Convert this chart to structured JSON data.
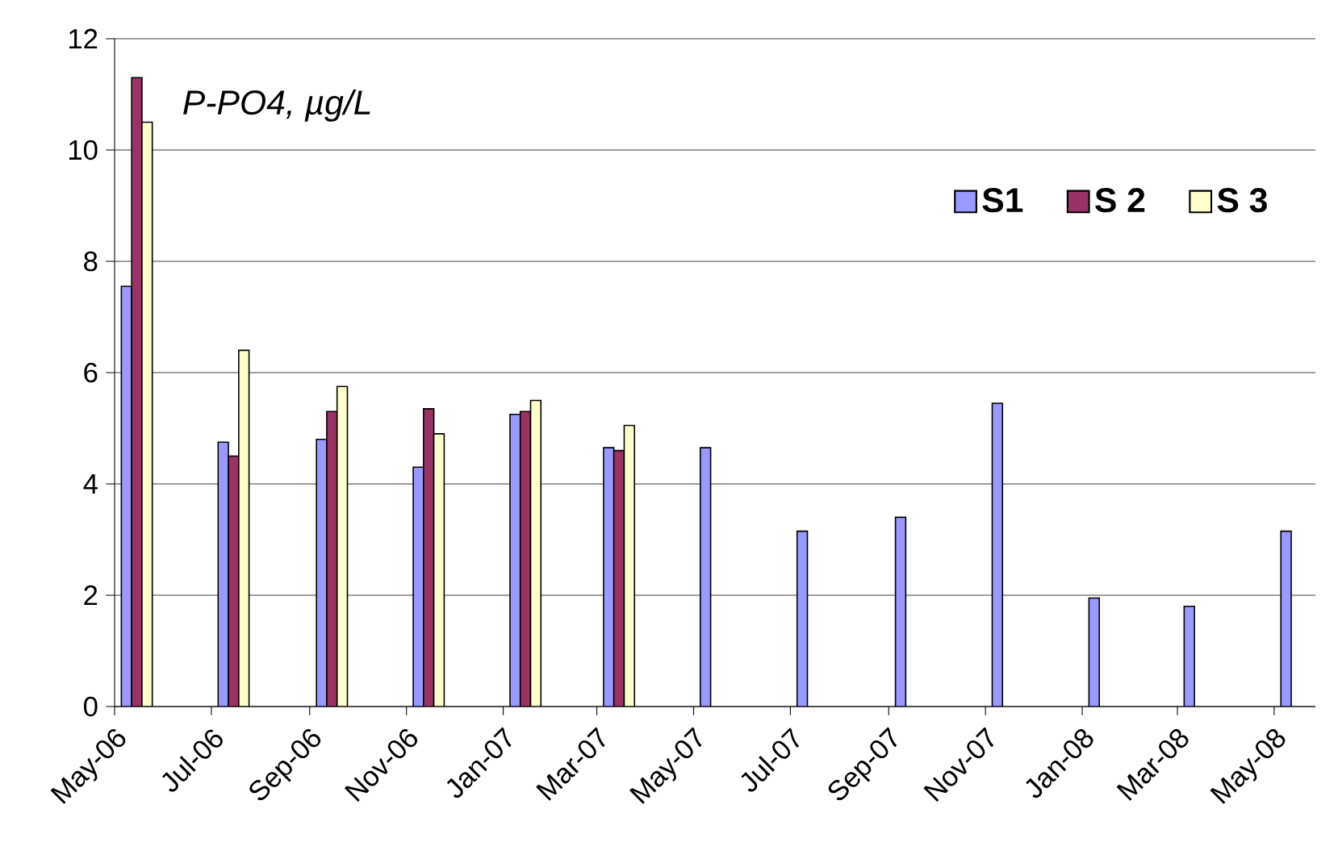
{
  "chart_data": {
    "type": "bar",
    "annotations": [
      "P-PO4, µg/L"
    ],
    "x": [
      "2006-05-15",
      "2006-07-15",
      "2006-09-15",
      "2006-11-15",
      "2007-01-15",
      "2007-03-15",
      "2007-05-15",
      "2007-07-15",
      "2007-09-15",
      "2007-11-15",
      "2008-01-15",
      "2008-03-15",
      "2008-05-15"
    ],
    "series": [
      {
        "name": "S1",
        "color": "#9999ff",
        "values": [
          7.55,
          4.75,
          4.8,
          4.3,
          5.25,
          4.65,
          4.65,
          3.15,
          3.4,
          5.45,
          1.95,
          1.8,
          3.15
        ]
      },
      {
        "name": "S 2",
        "color": "#993366",
        "values": [
          11.3,
          4.5,
          5.3,
          5.35,
          5.3,
          4.6,
          null,
          null,
          null,
          null,
          null,
          null,
          null
        ]
      },
      {
        "name": "S 3",
        "color": "#ffffcc",
        "values": [
          10.5,
          6.4,
          5.75,
          4.9,
          5.5,
          5.05,
          null,
          null,
          null,
          null,
          null,
          null,
          null
        ]
      }
    ],
    "xlim": [
      "2006-05-01",
      "2008-05-27"
    ],
    "xticks": [
      {
        "value": "2006-05-01",
        "label": "May-06"
      },
      {
        "value": "2006-07-01",
        "label": "Jul-06"
      },
      {
        "value": "2006-09-01",
        "label": "Sep-06"
      },
      {
        "value": "2006-11-01",
        "label": "Nov-06"
      },
      {
        "value": "2007-01-01",
        "label": "Jan-07"
      },
      {
        "value": "2007-03-01",
        "label": "Mar-07"
      },
      {
        "value": "2007-05-01",
        "label": "May-07"
      },
      {
        "value": "2007-07-01",
        "label": "Jul-07"
      },
      {
        "value": "2007-09-01",
        "label": "Sep-07"
      },
      {
        "value": "2007-11-01",
        "label": "Nov-07"
      },
      {
        "value": "2008-01-01",
        "label": "Jan-08"
      },
      {
        "value": "2008-03-01",
        "label": "Mar-08"
      },
      {
        "value": "2008-05-01",
        "label": "May-08"
      }
    ],
    "ylim": [
      0,
      12
    ],
    "yticks": [
      0,
      2,
      4,
      6,
      8,
      10,
      12
    ],
    "grid": "y",
    "legend": "top right"
  }
}
